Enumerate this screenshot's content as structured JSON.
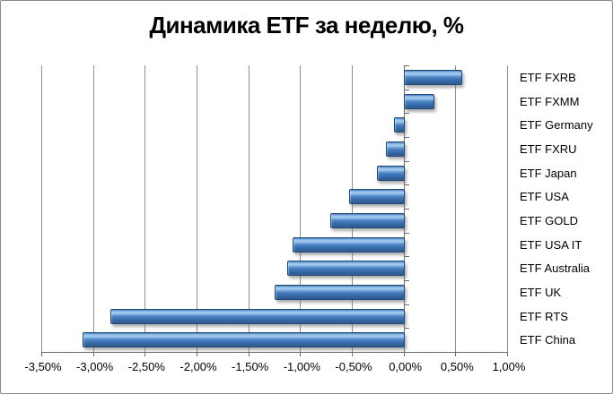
{
  "chart_data": {
    "type": "bar",
    "orientation": "horizontal",
    "title": "Динамика ETF за неделю, %",
    "categories": [
      "ETF FXRB",
      "ETF FXMM",
      "ETF Germany",
      "ETF FXRU",
      "ETF Japan",
      "ETF USA",
      "ETF GOLD",
      "ETF USA IT",
      "ETF Australia",
      "ETF UK",
      "ETF RTS",
      "ETF China"
    ],
    "values": [
      0.56,
      0.29,
      -0.09,
      -0.17,
      -0.26,
      -0.53,
      -0.71,
      -1.07,
      -1.12,
      -1.25,
      -2.83,
      -3.1
    ],
    "xlabel": "",
    "ylabel": "",
    "xlim": [
      -3.5,
      1.0
    ],
    "x_tick_values": [
      -3.5,
      -3.0,
      -2.5,
      -2.0,
      -1.5,
      -1.0,
      -0.5,
      0.0,
      0.5,
      1.0
    ],
    "x_tick_labels": [
      "-3,50%",
      "-3,00%",
      "-2,50%",
      "-2,00%",
      "-1,50%",
      "-1,00%",
      "-0,50%",
      "0,00%",
      "0,50%",
      "1,00%"
    ],
    "grid": true,
    "legend": false,
    "value_format": "percent-comma",
    "bar_fill_color": "#4a81c1",
    "bar_border_color": "#1d4876",
    "gridline_color": "#8f8f8f",
    "axis_color": "#6b6b6b",
    "title_color": "#000000",
    "background_color": "#ffffff"
  }
}
